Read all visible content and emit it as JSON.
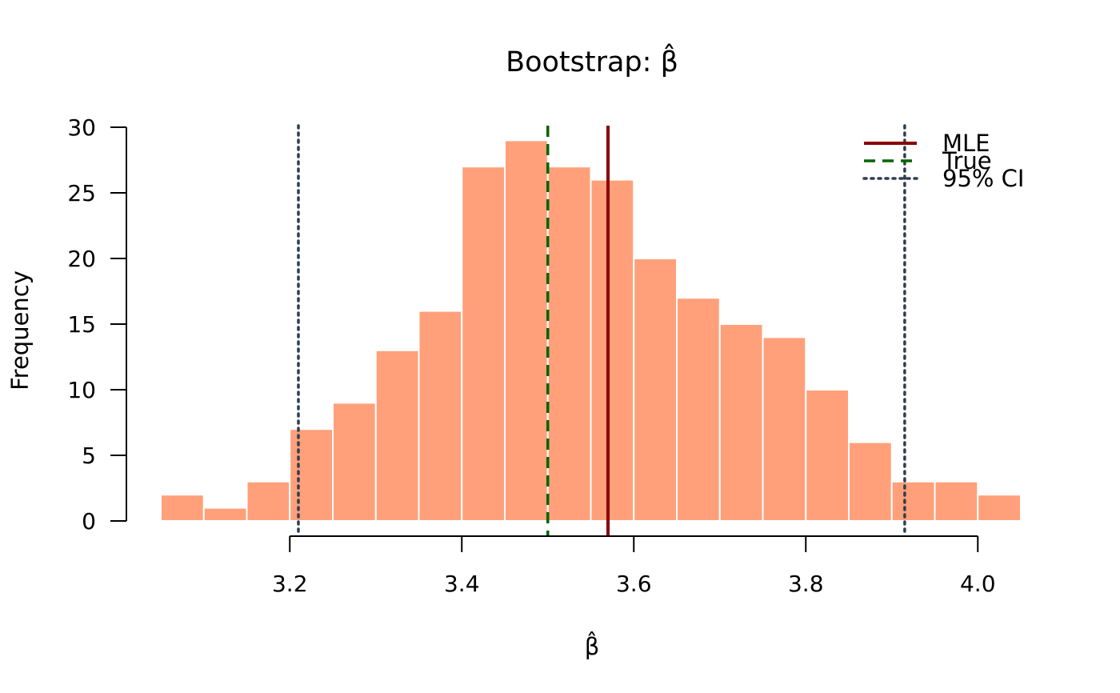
{
  "chart_data": {
    "type": "histogram",
    "title": "Bootstrap: β̂",
    "xlabel": "β̂",
    "ylabel": "Frequency",
    "bin_width": 0.05,
    "bins": [
      {
        "x0": 3.05,
        "x1": 3.1,
        "count": 2
      },
      {
        "x0": 3.1,
        "x1": 3.15,
        "count": 1
      },
      {
        "x0": 3.15,
        "x1": 3.2,
        "count": 3
      },
      {
        "x0": 3.2,
        "x1": 3.25,
        "count": 7
      },
      {
        "x0": 3.25,
        "x1": 3.3,
        "count": 9
      },
      {
        "x0": 3.3,
        "x1": 3.35,
        "count": 13
      },
      {
        "x0": 3.35,
        "x1": 3.4,
        "count": 16
      },
      {
        "x0": 3.4,
        "x1": 3.45,
        "count": 27
      },
      {
        "x0": 3.45,
        "x1": 3.5,
        "count": 29
      },
      {
        "x0": 3.5,
        "x1": 3.55,
        "count": 27
      },
      {
        "x0": 3.55,
        "x1": 3.6,
        "count": 26
      },
      {
        "x0": 3.6,
        "x1": 3.65,
        "count": 20
      },
      {
        "x0": 3.65,
        "x1": 3.7,
        "count": 17
      },
      {
        "x0": 3.7,
        "x1": 3.75,
        "count": 15
      },
      {
        "x0": 3.75,
        "x1": 3.8,
        "count": 14
      },
      {
        "x0": 3.8,
        "x1": 3.85,
        "count": 10
      },
      {
        "x0": 3.85,
        "x1": 3.9,
        "count": 6
      },
      {
        "x0": 3.9,
        "x1": 3.95,
        "count": 3
      },
      {
        "x0": 3.95,
        "x1": 4.0,
        "count": 3
      },
      {
        "x0": 4.0,
        "x1": 4.05,
        "count": 2
      }
    ],
    "xlim": [
      3.05,
      4.05
    ],
    "ylim": [
      0,
      30
    ],
    "x_ticks": [
      3.2,
      3.4,
      3.6,
      3.8,
      4.0
    ],
    "x_tick_labels": [
      "3.2",
      "3.4",
      "3.6",
      "3.8",
      "4.0"
    ],
    "y_ticks": [
      0,
      5,
      10,
      15,
      20,
      25,
      30
    ],
    "y_tick_labels": [
      "0",
      "5",
      "10",
      "15",
      "20",
      "25",
      "30"
    ],
    "vlines": [
      {
        "name": "MLE",
        "x": 3.57,
        "color": "#8b0000",
        "style": "solid"
      },
      {
        "name": "True",
        "x": 3.5,
        "color": "#006400",
        "style": "dashed"
      },
      {
        "name": "95% CI",
        "x": 3.21,
        "color": "#2f3e50",
        "style": "dotted"
      },
      {
        "name": "95% CI",
        "x": 3.915,
        "color": "#2f3e50",
        "style": "dotted"
      }
    ],
    "legend": {
      "placement": "top-right",
      "entries": [
        {
          "label": "MLE",
          "color": "#8b0000",
          "style": "solid"
        },
        {
          "label": "True",
          "color": "#006400",
          "style": "dashed"
        },
        {
          "label": "95% CI",
          "color": "#2f3e50",
          "style": "dotted"
        }
      ]
    },
    "colors": {
      "bar_fill": "#ffa07a",
      "bar_border": "#ffffff",
      "axis": "#000000"
    }
  }
}
